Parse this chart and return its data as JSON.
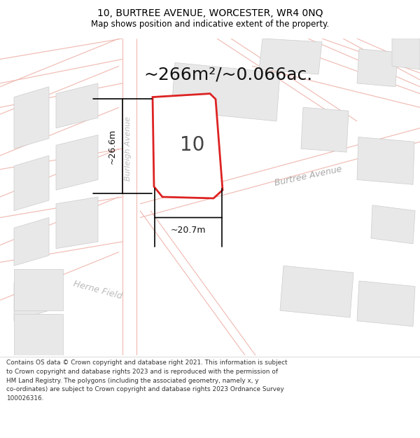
{
  "title_line1": "10, BURTREE AVENUE, WORCESTER, WR4 0NQ",
  "title_line2": "Map shows position and indicative extent of the property.",
  "area_text": "~266m²/~0.066ac.",
  "plot_number": "10",
  "dim_height": "~26.6m",
  "dim_width": "~20.7m",
  "street_burleigh": "Burleigh Avenue",
  "street_burtree": "Burtree Avenue",
  "street_herne": "Herne Field",
  "footer_lines": [
    "Contains OS data © Crown copyright and database right 2021. This information is subject",
    "to Crown copyright and database rights 2023 and is reproduced with the permission of",
    "HM Land Registry. The polygons (including the associated geometry, namely x, y",
    "co-ordinates) are subject to Crown copyright and database rights 2023 Ordnance Survey",
    "100026316."
  ],
  "map_bg": "#f7f6f4",
  "plot_fill": "#ffffff",
  "plot_edge": "#dd2222",
  "road_color": "#f0b8b0",
  "road_lw": 0.8,
  "building_fill": "#e8e8e8",
  "building_edge": "#cccccc",
  "title_bg": "#ffffff",
  "footer_bg": "#ffffff",
  "title_fs": 10,
  "subtitle_fs": 8.5,
  "area_fs": 18,
  "label_fs": 9,
  "dim_fs": 9,
  "number_fs": 20,
  "footer_fs": 6.4
}
